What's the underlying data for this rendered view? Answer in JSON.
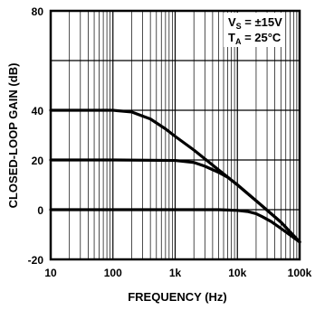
{
  "chart_data": {
    "type": "line",
    "xlabel": "FREQUENCY (Hz)",
    "ylabel": "CLOSED-LOOP GAIN (dB)",
    "xscale": "log",
    "xlim": [
      10,
      100000
    ],
    "ylim": [
      -20,
      80
    ],
    "x_ticks": [
      10,
      100,
      1000,
      10000,
      100000
    ],
    "x_tick_labels": [
      "10",
      "100",
      "1k",
      "10k",
      "100k"
    ],
    "y_ticks": [
      -20,
      0,
      20,
      40,
      80
    ],
    "y_tick_labels": [
      "-20",
      "0",
      "20",
      "40",
      "80"
    ],
    "grid": true,
    "annotation": {
      "line1": {
        "main": "V",
        "sub": "S",
        "rest": " = ±15V"
      },
      "line2": {
        "main": "T",
        "sub": "A",
        "rest": " = 25°C"
      },
      "placement": "top-right"
    },
    "series": [
      {
        "x": [
          10,
          100,
          200,
          400,
          700,
          1000,
          2000,
          5000,
          10000,
          23000,
          50000,
          100000
        ],
        "y": [
          40,
          40,
          39.3,
          36.5,
          32.5,
          29.5,
          24,
          16,
          10,
          2.3,
          -5,
          -13
        ]
      },
      {
        "x": [
          10,
          100,
          1000,
          2000,
          3000,
          5000,
          7000,
          10000,
          23000,
          50000,
          100000
        ],
        "y": [
          20,
          20,
          19.8,
          19,
          17.5,
          15,
          13,
          10,
          2.3,
          -5,
          -13
        ]
      },
      {
        "x": [
          10,
          100,
          1000,
          5000,
          10000,
          15000,
          20000,
          25000,
          35000,
          50000,
          100000
        ],
        "y": [
          0,
          0,
          0,
          0,
          -0.3,
          -0.8,
          -1.6,
          -2.8,
          -4.8,
          -7.5,
          -13
        ]
      }
    ]
  }
}
